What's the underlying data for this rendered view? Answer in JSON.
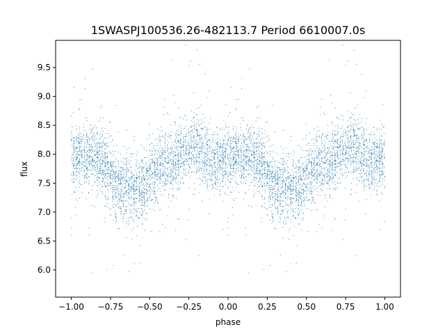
{
  "chart_data": {
    "type": "scatter",
    "title": "1SWASPJ100536.26-482113.7 Period 6610007.0s",
    "xlabel": "phase",
    "ylabel": "flux",
    "xlim": [
      -1.1,
      1.1
    ],
    "ylim": [
      5.53,
      9.97
    ],
    "x_ticks": [
      "−1.00",
      "−0.75",
      "−0.50",
      "−0.25",
      "0.00",
      "0.25",
      "0.50",
      "0.75",
      "1.00"
    ],
    "y_ticks": [
      "6.0",
      "6.5",
      "7.0",
      "7.5",
      "8.0",
      "8.5",
      "9.0",
      "9.5"
    ],
    "grid": false,
    "marker_color": "#1f77b4",
    "phase_profile": {
      "description_values_only": true,
      "x": [
        0.0,
        0.05,
        0.1,
        0.15,
        0.2,
        0.25,
        0.3,
        0.35,
        0.4,
        0.45,
        0.5,
        0.55,
        0.6,
        0.65,
        0.7,
        0.75,
        0.8,
        0.85,
        0.9,
        0.95
      ],
      "mean_flux": [
        7.9,
        7.95,
        7.95,
        7.95,
        7.9,
        7.6,
        7.45,
        7.4,
        7.35,
        7.4,
        7.6,
        7.75,
        7.8,
        7.85,
        8.0,
        8.1,
        8.1,
        8.0,
        7.9,
        7.95
      ]
    }
  }
}
